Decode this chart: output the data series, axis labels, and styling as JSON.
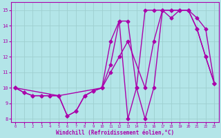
{
  "xlabel": "Windchill (Refroidissement éolien,°C)",
  "xlim": [
    -0.5,
    23.5
  ],
  "ylim": [
    7.8,
    15.5
  ],
  "xticks": [
    0,
    1,
    2,
    3,
    4,
    5,
    6,
    7,
    8,
    9,
    10,
    11,
    12,
    13,
    14,
    15,
    16,
    17,
    18,
    19,
    20,
    21,
    22,
    23
  ],
  "yticks": [
    8,
    9,
    10,
    11,
    12,
    13,
    14,
    15
  ],
  "background_color": "#b3e5e8",
  "grid_color": "#9ecfcf",
  "line_color": "#aa00aa",
  "line1_x": [
    0,
    1,
    2,
    3,
    4,
    5,
    6,
    7,
    8,
    9,
    10,
    11,
    12,
    13,
    14,
    15,
    16,
    17,
    18,
    19,
    20,
    21,
    22,
    23
  ],
  "line1_y": [
    10,
    9.7,
    9.5,
    9.5,
    9.5,
    9.5,
    8.2,
    8.5,
    9.5,
    9.8,
    10,
    11.5,
    14.3,
    14.3,
    10,
    8.0,
    10,
    15,
    15,
    15,
    15,
    13.8,
    12,
    10.3
  ],
  "line2_x": [
    0,
    1,
    2,
    3,
    4,
    5,
    6,
    7,
    8,
    9,
    10,
    11,
    12,
    13,
    14,
    15,
    16,
    17,
    18,
    19,
    20,
    21,
    22,
    23
  ],
  "line2_y": [
    10,
    9.7,
    9.5,
    9.5,
    9.5,
    9.5,
    8.2,
    8.5,
    9.5,
    9.8,
    10,
    13,
    14.3,
    8.0,
    10,
    15,
    15,
    15,
    15,
    15,
    15,
    13.8,
    12,
    10.3
  ],
  "line3_x": [
    0,
    5,
    10,
    11,
    12,
    13,
    15,
    16,
    17,
    18,
    19,
    20,
    21,
    22,
    23
  ],
  "line3_y": [
    10,
    9.5,
    10,
    11,
    12,
    13,
    10,
    13,
    15,
    14.5,
    15,
    15,
    14.5,
    13.8,
    10.3
  ]
}
